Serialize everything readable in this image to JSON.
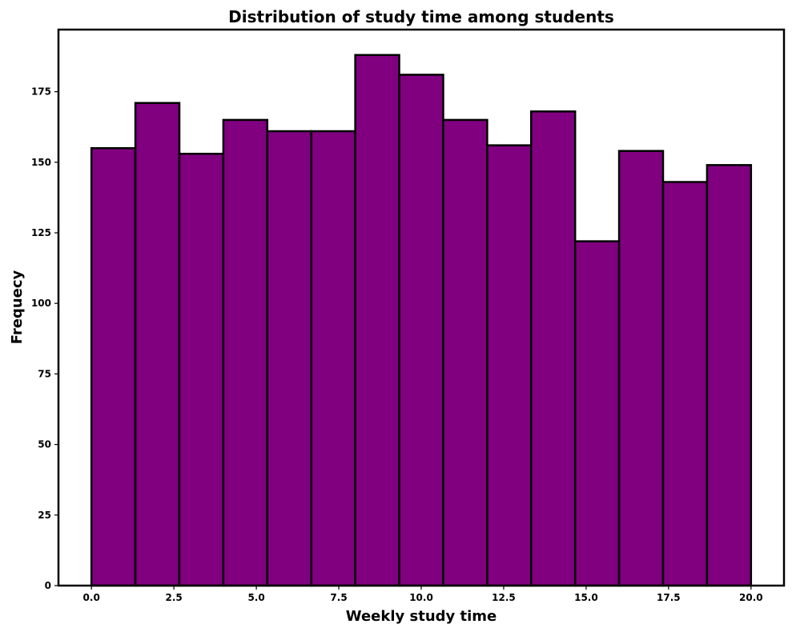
{
  "chart_data": {
    "type": "bar",
    "subtype": "histogram",
    "title": "Distribution of study time among students",
    "xlabel": "Weekly study time",
    "ylabel": "Frequecy",
    "bin_edges": [
      0,
      1.333,
      2.667,
      4.0,
      5.333,
      6.667,
      8.0,
      9.333,
      10.667,
      12.0,
      13.333,
      14.667,
      16.0,
      17.333,
      18.667,
      20.0
    ],
    "values": [
      155,
      171,
      153,
      165,
      161,
      161,
      188,
      181,
      165,
      156,
      168,
      122,
      154,
      143,
      149
    ],
    "xlim": [
      -1,
      21
    ],
    "ylim": [
      0,
      197
    ],
    "xticks": [
      0.0,
      2.5,
      5.0,
      7.5,
      10.0,
      12.5,
      15.0,
      17.5,
      20.0
    ],
    "xtick_labels": [
      "0.0",
      "2.5",
      "5.0",
      "7.5",
      "10.0",
      "12.5",
      "15.0",
      "17.5",
      "20.0"
    ],
    "yticks": [
      0,
      25,
      50,
      75,
      100,
      125,
      150,
      175
    ],
    "ytick_labels": [
      "0",
      "25",
      "50",
      "75",
      "100",
      "125",
      "150",
      "175"
    ],
    "grid": false,
    "bar_color": "#800080",
    "edge_color": "#000000"
  }
}
